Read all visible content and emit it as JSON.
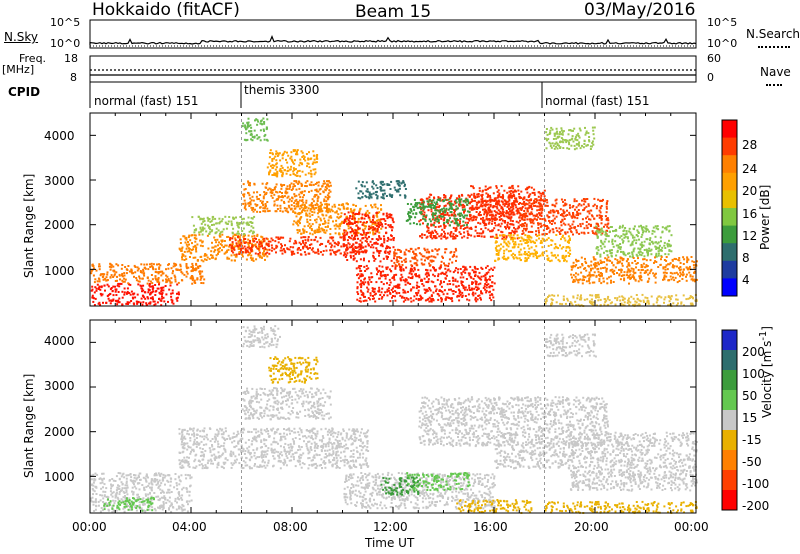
{
  "header": {
    "station": "Hokkaido (fitACF)",
    "beam": "Beam 15",
    "date": "03/May/2016"
  },
  "nsky_panel": {
    "label": "N.Sky",
    "ticks_left": [
      "10^5",
      "10^0"
    ],
    "ticks_right": [
      "10^5",
      "10^0"
    ],
    "right_label": "N.Search"
  },
  "freq_panel": {
    "label_top": "Freq.",
    "label_bottom": "[MHz]",
    "ticks_left": [
      "18",
      "8"
    ],
    "ticks_right": [
      "60",
      "0"
    ],
    "right_label": "Nave"
  },
  "cpid_panel": {
    "label": "CPID",
    "modes": [
      {
        "name": "normal (fast) 151",
        "start_hour": 0,
        "end_hour": 6
      },
      {
        "name": "themis 3300",
        "start_hour": 6,
        "end_hour": 18
      },
      {
        "name": "normal (fast) 151",
        "start_hour": 18,
        "end_hour": 24
      }
    ]
  },
  "x_axis": {
    "label": "Time UT",
    "ticks": [
      "00:00",
      "04:00",
      "08:00",
      "12:00",
      "16:00",
      "20:00",
      "00:00"
    ]
  },
  "power_colorbar": {
    "label": "Power [dB]",
    "ticks": [
      "28",
      "24",
      "20",
      "16",
      "12",
      "8",
      "4"
    ],
    "colors": [
      "#ff0000",
      "#ff3c00",
      "#ff8000",
      "#ffa000",
      "#e8c000",
      "#80c840",
      "#3c9c3c",
      "#2e6e6e",
      "#1e3ca0",
      "#0000ff"
    ]
  },
  "velocity_colorbar": {
    "label": "Velocity [m s^-1]",
    "ticks": [
      "200",
      "100",
      "50",
      "15",
      "-15",
      "-50",
      "-100",
      "-200"
    ],
    "colors": [
      "#1e28c8",
      "#2e6e6e",
      "#3c9c3c",
      "#64c850",
      "#c8c8c8",
      "#e8b000",
      "#ff8000",
      "#ff4000",
      "#ff0000"
    ]
  },
  "chart_data": [
    {
      "type": "heatmap",
      "name": "power",
      "ylabel": "Slant Range [km]",
      "yticks": [
        1000,
        2000,
        3000,
        4000
      ],
      "ylim": [
        180,
        4500
      ],
      "xlim": [
        0,
        24
      ],
      "bands": [
        {
          "t0": 0.0,
          "t1": 3.5,
          "r0": 220,
          "r1": 700,
          "c": "#ff1000"
        },
        {
          "t0": 0.0,
          "t1": 4.5,
          "r0": 700,
          "r1": 1150,
          "c": "#ff7a00"
        },
        {
          "t0": 3.5,
          "t1": 7.0,
          "r0": 1200,
          "r1": 1800,
          "c": "#ff8a00"
        },
        {
          "t0": 4.0,
          "t1": 6.5,
          "r0": 1800,
          "r1": 2200,
          "c": "#9cc850"
        },
        {
          "t0": 5.5,
          "t1": 11.0,
          "r0": 1350,
          "r1": 1750,
          "c": "#ff3000"
        },
        {
          "t0": 6.0,
          "t1": 9.5,
          "r0": 2300,
          "r1": 3000,
          "c": "#ff8000"
        },
        {
          "t0": 7.0,
          "t1": 9.0,
          "r0": 3100,
          "r1": 3700,
          "c": "#ffa000"
        },
        {
          "t0": 8.0,
          "t1": 11.5,
          "r0": 1800,
          "r1": 2500,
          "c": "#ff9000"
        },
        {
          "t0": 10.0,
          "t1": 12.0,
          "r0": 1200,
          "r1": 2300,
          "c": "#ff2000"
        },
        {
          "t0": 10.5,
          "t1": 16.0,
          "r0": 300,
          "r1": 1100,
          "c": "#ff2000"
        },
        {
          "t0": 12.0,
          "t1": 14.5,
          "r0": 1100,
          "r1": 1500,
          "c": "#ff5000"
        },
        {
          "t0": 13.0,
          "t1": 17.0,
          "r0": 1700,
          "r1": 2700,
          "c": "#ff2a00"
        },
        {
          "t0": 12.5,
          "t1": 15.0,
          "r0": 2000,
          "r1": 2600,
          "c": "#3c9c3c"
        },
        {
          "t0": 15.0,
          "t1": 18.0,
          "r0": 2100,
          "r1": 2900,
          "c": "#ff3000"
        },
        {
          "t0": 17.0,
          "t1": 20.5,
          "r0": 1800,
          "r1": 2600,
          "c": "#ff4000"
        },
        {
          "t0": 16.0,
          "t1": 19.0,
          "r0": 1200,
          "r1": 1800,
          "c": "#ffb000"
        },
        {
          "t0": 20.0,
          "t1": 23.0,
          "r0": 1300,
          "r1": 2000,
          "c": "#8cc850"
        },
        {
          "t0": 19.0,
          "t1": 24.0,
          "r0": 700,
          "r1": 1300,
          "c": "#ff8000"
        },
        {
          "t0": 18.0,
          "t1": 24.0,
          "r0": 200,
          "r1": 450,
          "c": "#e8c040"
        },
        {
          "t0": 18.0,
          "t1": 20.0,
          "r0": 3700,
          "r1": 4200,
          "c": "#9cc850"
        },
        {
          "t0": 6.0,
          "t1": 7.0,
          "r0": 3900,
          "r1": 4400,
          "c": "#6cbc50"
        },
        {
          "t0": 10.5,
          "t1": 12.5,
          "r0": 2600,
          "r1": 3000,
          "c": "#2e6e6e"
        }
      ]
    },
    {
      "type": "heatmap",
      "name": "velocity",
      "ylabel": "Slant Range [km]",
      "yticks": [
        1000,
        2000,
        3000,
        4000
      ],
      "ylim": [
        180,
        4500
      ],
      "xlim": [
        0,
        24
      ],
      "bands": [
        {
          "t0": 0.0,
          "t1": 4.0,
          "r0": 220,
          "r1": 1100,
          "c": "#c8c8c8"
        },
        {
          "t0": 0.5,
          "t1": 2.5,
          "r0": 250,
          "r1": 550,
          "c": "#64c850"
        },
        {
          "t0": 3.5,
          "t1": 11.0,
          "r0": 1200,
          "r1": 2100,
          "c": "#c8c8c8"
        },
        {
          "t0": 6.0,
          "t1": 9.5,
          "r0": 2300,
          "r1": 3000,
          "c": "#c8c8c8"
        },
        {
          "t0": 7.0,
          "t1": 9.0,
          "r0": 3100,
          "r1": 3700,
          "c": "#e8b000"
        },
        {
          "t0": 10.0,
          "t1": 16.0,
          "r0": 300,
          "r1": 1100,
          "c": "#c8c8c8"
        },
        {
          "t0": 12.5,
          "t1": 15.0,
          "r0": 700,
          "r1": 1100,
          "c": "#64c850"
        },
        {
          "t0": 14.5,
          "t1": 17.5,
          "r0": 200,
          "r1": 500,
          "c": "#e8b000"
        },
        {
          "t0": 13.0,
          "t1": 20.5,
          "r0": 1700,
          "r1": 2800,
          "c": "#c8c8c8"
        },
        {
          "t0": 16.0,
          "t1": 19.0,
          "r0": 1200,
          "r1": 1800,
          "c": "#c8c8c8"
        },
        {
          "t0": 19.0,
          "t1": 24.0,
          "r0": 700,
          "r1": 2000,
          "c": "#c8c8c8"
        },
        {
          "t0": 18.0,
          "t1": 24.0,
          "r0": 200,
          "r1": 450,
          "c": "#e8b000"
        },
        {
          "t0": 6.0,
          "t1": 7.5,
          "r0": 3900,
          "r1": 4400,
          "c": "#c8c8c8"
        },
        {
          "t0": 18.0,
          "t1": 20.0,
          "r0": 3700,
          "r1": 4200,
          "c": "#c8c8c8"
        },
        {
          "t0": 11.5,
          "t1": 13.0,
          "r0": 600,
          "r1": 1000,
          "c": "#3c9c3c"
        }
      ]
    }
  ]
}
